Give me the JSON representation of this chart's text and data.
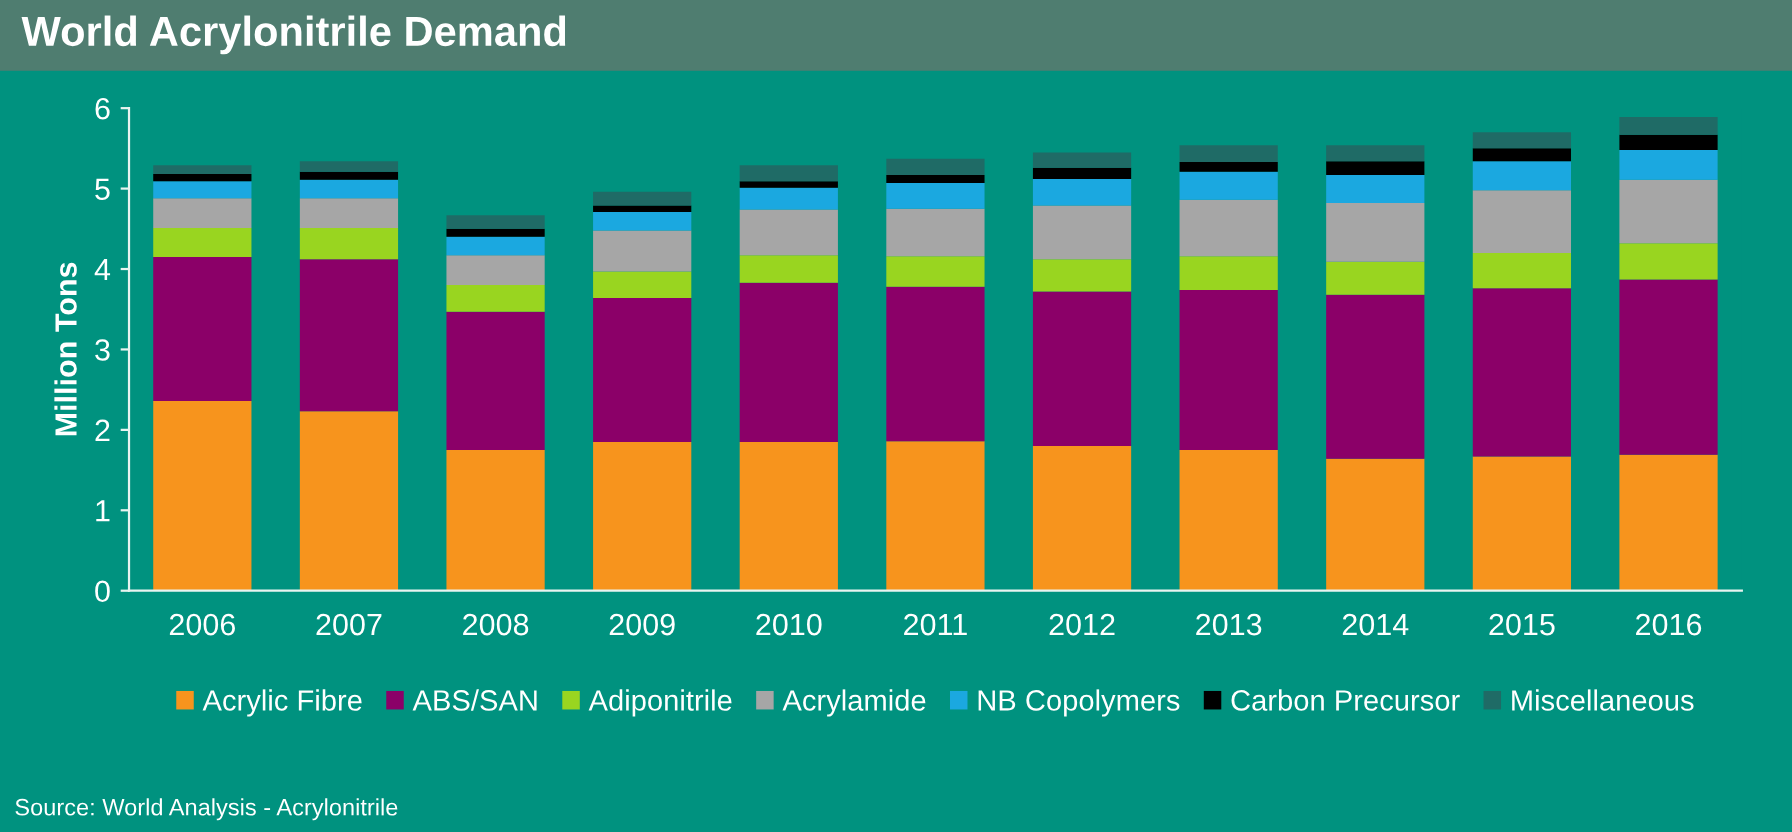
{
  "chart_data": {
    "type": "bar",
    "title": "World Acrylonitrile Demand",
    "ylabel": "Million Tons",
    "stacked": true,
    "legend": "bottom",
    "grid": false,
    "categories": [
      "2006",
      "2007",
      "2008",
      "2009",
      "2010",
      "2011",
      "2012",
      "2013",
      "2014",
      "2015",
      "2016"
    ],
    "ylim": [
      0,
      6
    ],
    "yticks": [
      0,
      1,
      2,
      3,
      4,
      5,
      6
    ],
    "series": [
      {
        "name": "Acrylic Fibre",
        "color": "#f7941d",
        "values": [
          2.36,
          2.23,
          1.75,
          1.85,
          1.85,
          1.86,
          1.8,
          1.75,
          1.64,
          1.67,
          1.69
        ]
      },
      {
        "name": "ABS/SAN",
        "color": "#8b0068",
        "values": [
          1.79,
          1.89,
          1.72,
          1.79,
          1.98,
          1.92,
          1.92,
          1.99,
          2.04,
          2.09,
          2.18
        ]
      },
      {
        "name": "Adiponitrile",
        "color": "#99d520",
        "values": [
          0.36,
          0.39,
          0.33,
          0.33,
          0.34,
          0.38,
          0.4,
          0.42,
          0.41,
          0.44,
          0.45
        ]
      },
      {
        "name": "Acrylamide",
        "color": "#a6a6a6",
        "values": [
          0.37,
          0.37,
          0.37,
          0.51,
          0.57,
          0.59,
          0.67,
          0.7,
          0.73,
          0.78,
          0.79
        ]
      },
      {
        "name": "NB Copolymers",
        "color": "#1ba8e0",
        "values": [
          0.21,
          0.23,
          0.23,
          0.23,
          0.27,
          0.32,
          0.33,
          0.35,
          0.35,
          0.36,
          0.37
        ]
      },
      {
        "name": "Carbon Precursor",
        "color": "#000000",
        "values": [
          0.09,
          0.1,
          0.1,
          0.08,
          0.08,
          0.1,
          0.14,
          0.12,
          0.17,
          0.16,
          0.19
        ]
      },
      {
        "name": "Miscellaneous",
        "color": "#1f6b66",
        "values": [
          0.11,
          0.13,
          0.17,
          0.17,
          0.2,
          0.2,
          0.19,
          0.21,
          0.2,
          0.2,
          0.22
        ]
      }
    ],
    "annotations": [
      "Source: World Analysis - Acrylonitrile"
    ]
  }
}
